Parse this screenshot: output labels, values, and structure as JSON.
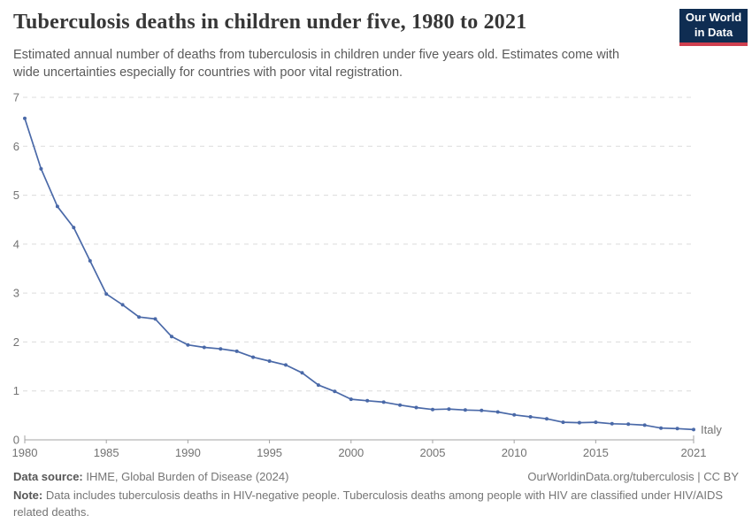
{
  "header": {
    "title": "Tuberculosis deaths in children under five, 1980 to 2021",
    "subtitle": "Estimated annual number of deaths from tuberculosis in children under five years old. Estimates come with wide uncertainties especially for countries with poor vital registration.",
    "logo": {
      "line1": "Our World",
      "line2": "in Data"
    }
  },
  "chart_data": {
    "type": "line",
    "title": "Tuberculosis deaths in children under five, 1980 to 2021",
    "xlabel": "",
    "ylabel": "",
    "xlim": [
      1980,
      2021
    ],
    "ylim": [
      0,
      7
    ],
    "x_ticks": [
      1980,
      1985,
      1990,
      1995,
      2000,
      2005,
      2010,
      2015,
      2021
    ],
    "y_ticks": [
      0,
      1,
      2,
      3,
      4,
      5,
      6,
      7
    ],
    "grid": "horizontal-dashed",
    "legend_position": "end-of-line-label",
    "series": [
      {
        "name": "Italy",
        "color": "#4a69a8",
        "label_color": "#587ab8",
        "years": [
          1980,
          1981,
          1982,
          1983,
          1984,
          1985,
          1986,
          1987,
          1988,
          1989,
          1990,
          1991,
          1992,
          1993,
          1994,
          1995,
          1996,
          1997,
          1998,
          1999,
          2000,
          2001,
          2002,
          2003,
          2004,
          2005,
          2006,
          2007,
          2008,
          2009,
          2010,
          2011,
          2012,
          2013,
          2014,
          2015,
          2016,
          2017,
          2018,
          2019,
          2020,
          2021
        ],
        "values": [
          6.57,
          5.54,
          4.77,
          4.34,
          3.66,
          2.98,
          2.76,
          2.51,
          2.47,
          2.11,
          1.94,
          1.89,
          1.86,
          1.81,
          1.69,
          1.61,
          1.53,
          1.37,
          1.12,
          0.99,
          0.83,
          0.8,
          0.77,
          0.71,
          0.66,
          0.62,
          0.63,
          0.61,
          0.6,
          0.57,
          0.51,
          0.47,
          0.43,
          0.36,
          0.35,
          0.36,
          0.33,
          0.32,
          0.3,
          0.24,
          0.23,
          0.21
        ]
      }
    ]
  },
  "footer": {
    "datasource_label": "Data source:",
    "datasource_value": " IHME, Global Burden of Disease (2024)",
    "link": "OurWorldinData.org/tuberculosis | CC BY",
    "note_label": "Note:",
    "note_value": " Data includes tuberculosis deaths in HIV-negative people. Tuberculosis deaths among people with HIV are classified under HIV/AIDS related deaths."
  },
  "colors": {
    "line": "#4a69a8",
    "series_label": "#587ab8",
    "grid": "#dcdcdc",
    "axis": "#a3a3a3",
    "tick_text": "#737373",
    "title_text": "#373737",
    "subtitle_text": "#5a5a5a",
    "logo_background": "#0f2d52",
    "logo_accent": "#cf3f4f"
  }
}
